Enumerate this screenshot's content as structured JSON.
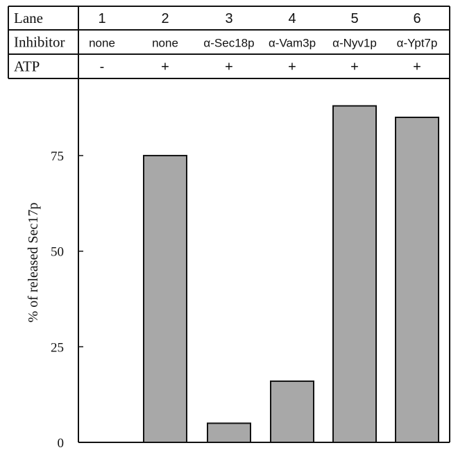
{
  "chart_data": {
    "type": "bar",
    "header_rows": [
      {
        "label": "Lane",
        "cells": [
          "1",
          "2",
          "3",
          "4",
          "5",
          "6"
        ]
      },
      {
        "label": "Inhibitor",
        "cells": [
          "none",
          "none",
          "α-Sec18p",
          "α-Vam3p",
          "α-Nyv1p",
          "α-Ypt7p"
        ]
      },
      {
        "label": "ATP",
        "cells": [
          "-",
          "+",
          "+",
          "+",
          "+",
          "+"
        ]
      }
    ],
    "categories": [
      "1",
      "2",
      "3",
      "4",
      "5",
      "6"
    ],
    "values": [
      0,
      75,
      5,
      16,
      88,
      85
    ],
    "ylabel": "% of released Sec17p",
    "yticks": [
      0,
      25,
      50,
      75
    ],
    "ylim": [
      0,
      92
    ],
    "bar_color": "#a8a8a8",
    "title": "",
    "xlabel": ""
  }
}
